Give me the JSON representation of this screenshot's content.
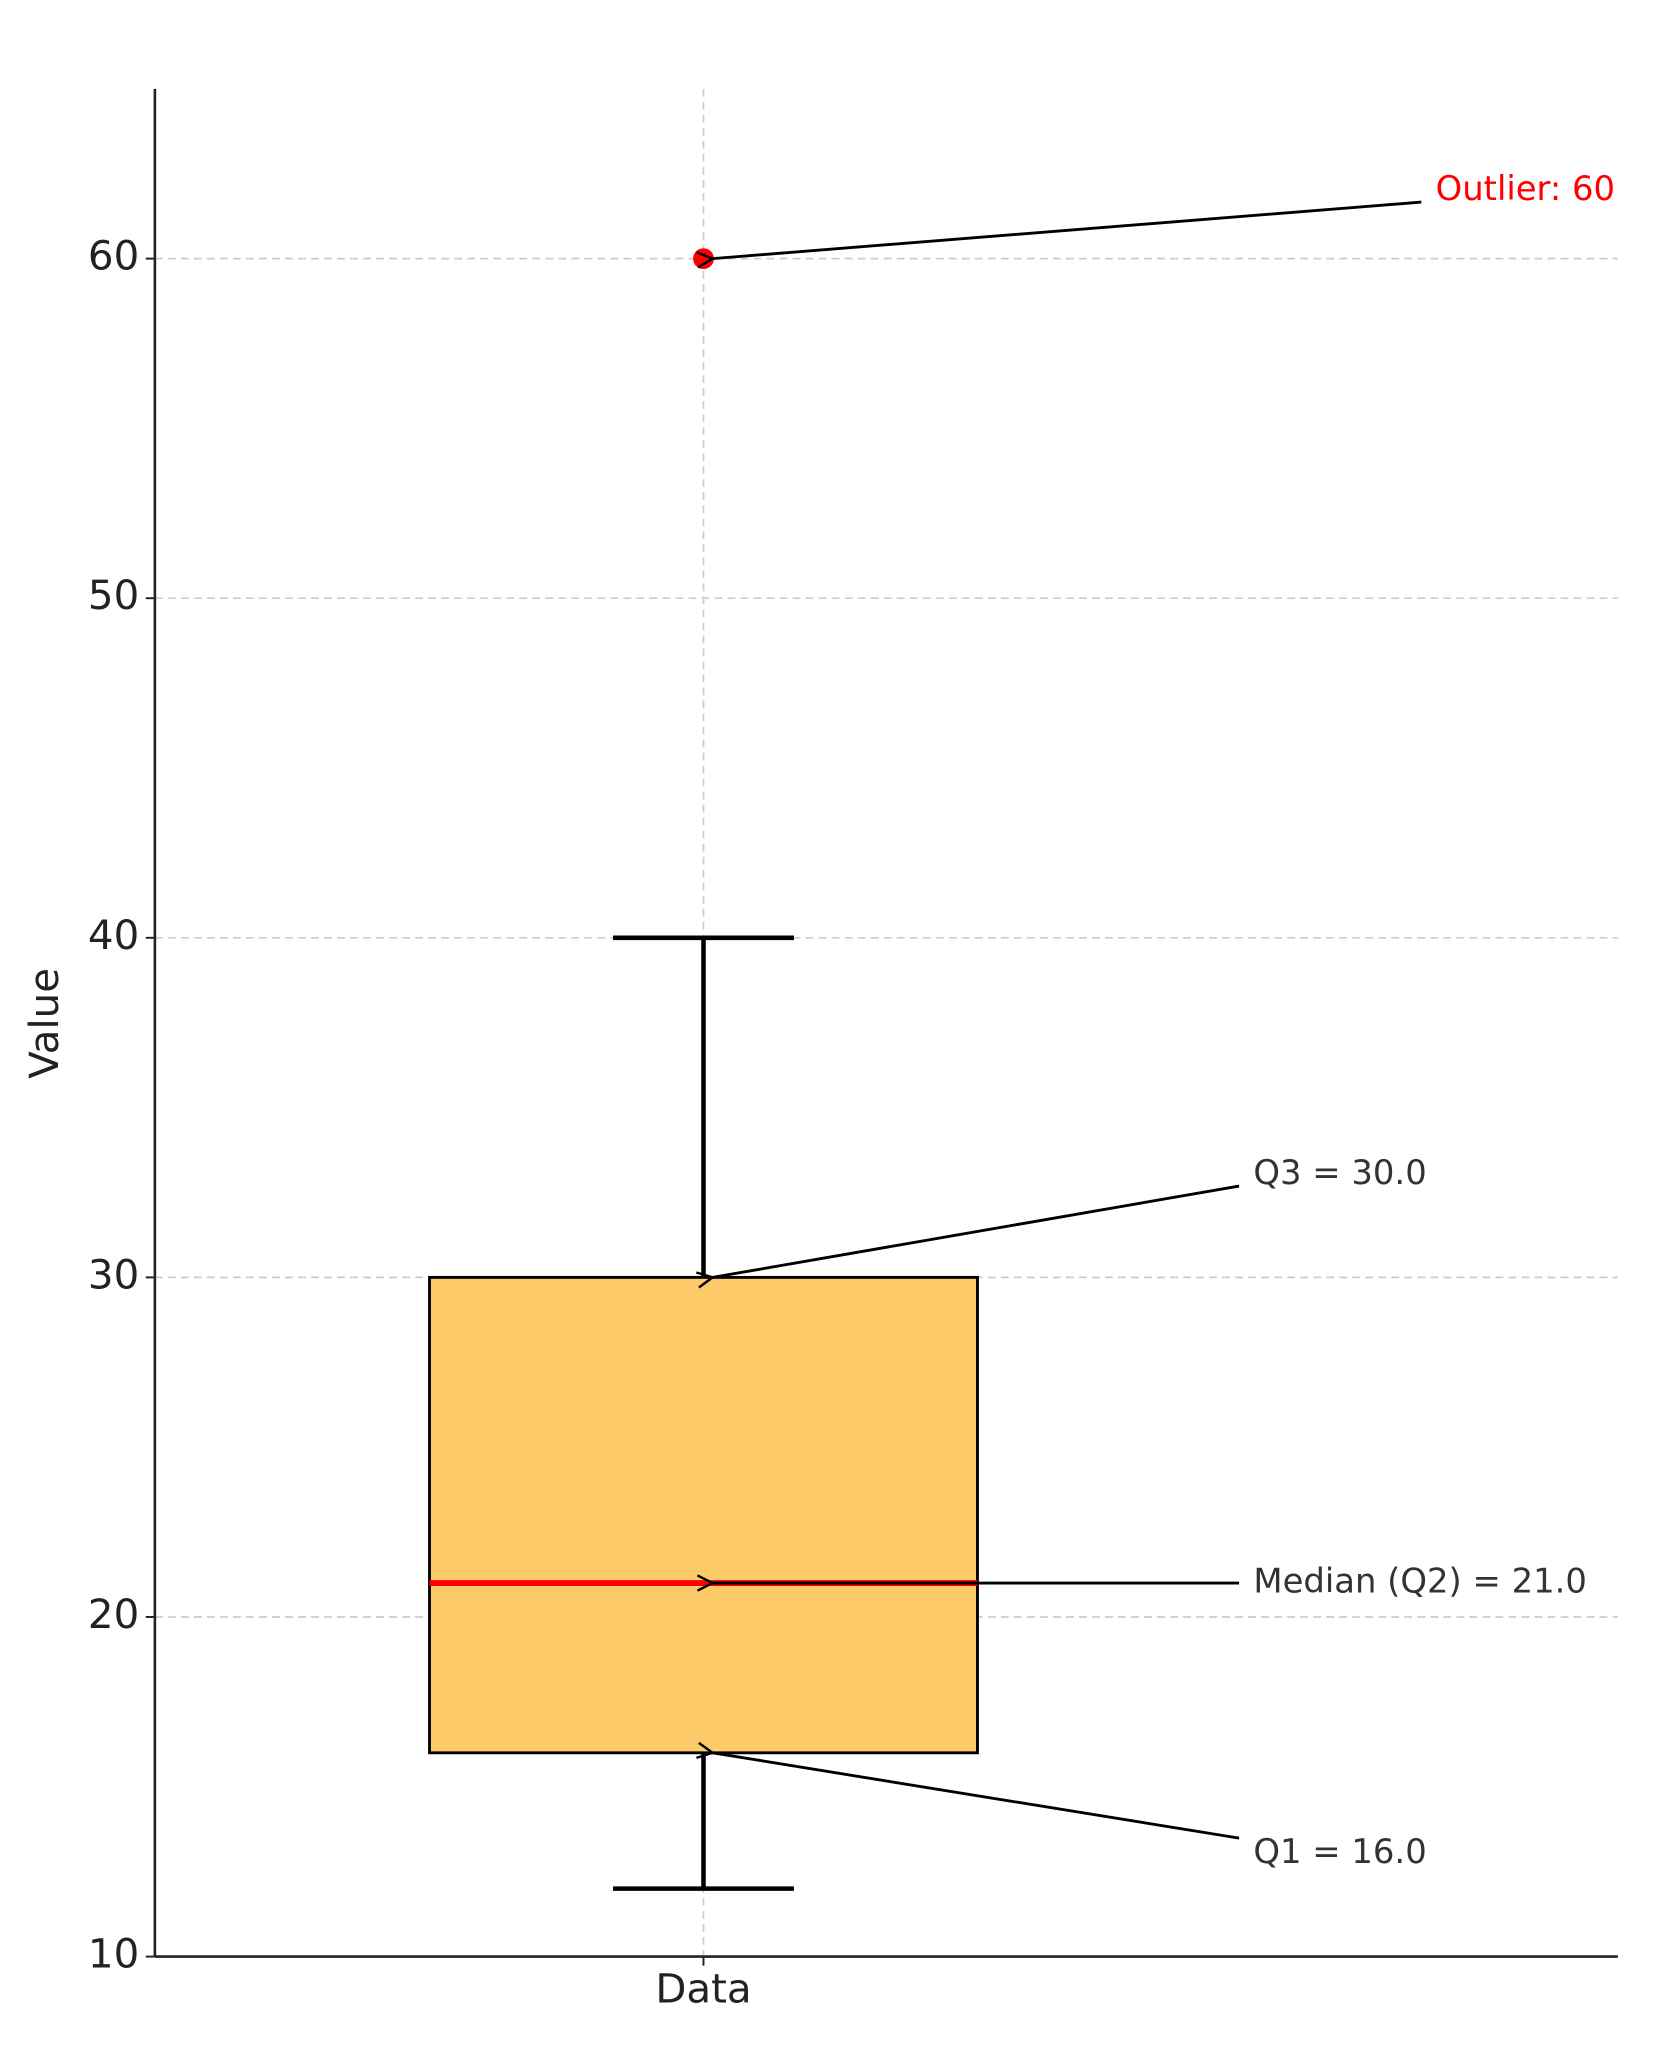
{
  "chart_data": {
    "type": "box",
    "ylabel": "Value",
    "categories": [
      "Data"
    ],
    "box": {
      "whislo": 12,
      "q1": 16,
      "med": 21,
      "q3": 30,
      "whishi": 40,
      "fliers": [
        60
      ]
    },
    "color": "#fdca6a",
    "median_color": "#ff0000",
    "flier_color": "#ff0000",
    "ylim": [
      10,
      65
    ],
    "yticks": [
      10,
      20,
      30,
      40,
      50,
      60
    ],
    "grid": true,
    "annotations": [
      {
        "text": "Outlier: 60",
        "value": 60,
        "color": "#ff0000"
      },
      {
        "text": "Q3 = 30.0",
        "value": 30,
        "color": "#333333"
      },
      {
        "text": "Median (Q2) = 21.0",
        "value": 21,
        "color": "#333333"
      },
      {
        "text": "Q1 = 16.0",
        "value": 16,
        "color": "#333333"
      }
    ]
  }
}
